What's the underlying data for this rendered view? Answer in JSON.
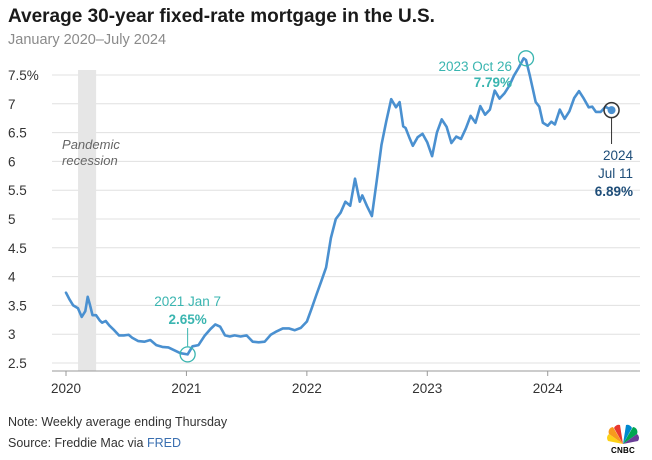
{
  "header": {
    "title": "Average 30-year fixed-rate mortgage in the U.S.",
    "subtitle": "January 2020–July 2024"
  },
  "footer": {
    "note": "Note: Weekly average ending Thursday",
    "source_prefix": "Source: Freddie Mac via ",
    "source_link": "FRED",
    "logo_text": "CNBC",
    "logo_icon": "peacock-icon"
  },
  "colors": {
    "line": "#4a90d0",
    "teal_annotation": "#3ab5b0",
    "navy_annotation": "#1f4e79",
    "recession_band": "#e6e6e6",
    "grid": "#e0e0e0"
  },
  "chart_data": {
    "type": "line",
    "title": "Average 30-year fixed-rate mortgage in the U.S.",
    "subtitle": "January 2020–July 2024",
    "xlabel": "",
    "ylabel": "",
    "xlim": [
      2020.0,
      2024.65
    ],
    "ylim": [
      2.5,
      7.5
    ],
    "x_ticks": [
      2020,
      2021,
      2022,
      2023,
      2024
    ],
    "x_tick_labels": [
      "2020",
      "2021",
      "2022",
      "2023",
      "2024"
    ],
    "y_ticks": [
      2.5,
      3,
      3.5,
      4,
      4.5,
      5,
      5.5,
      6,
      6.5,
      7,
      7.5
    ],
    "y_tick_labels": [
      "2.5",
      "3",
      "3.5",
      "4",
      "4.5",
      "5",
      "5.5",
      "6",
      "6.5",
      "7",
      "7.5%"
    ],
    "grid": "horizontal",
    "shaded_regions": [
      {
        "label_lines": [
          "Pandemic",
          "recession"
        ],
        "x_start": 2020.1,
        "x_end": 2020.25
      }
    ],
    "annotations": [
      {
        "x": 2021.01,
        "y": 2.65,
        "label": "2021 Jan 7",
        "value_label": "2.65%",
        "style": "teal"
      },
      {
        "x": 2023.82,
        "y": 7.79,
        "label": "2023 Oct 26",
        "value_label": "7.79%",
        "style": "teal"
      },
      {
        "x": 2024.53,
        "y": 6.89,
        "label_lines": [
          "2024",
          "Jul 11"
        ],
        "value_label": "6.89%",
        "style": "navy"
      }
    ],
    "series": [
      {
        "x": [
          2020.0,
          2020.03,
          2020.06,
          2020.1,
          2020.13,
          2020.16,
          2020.18,
          2020.2,
          2020.22,
          2020.25,
          2020.28,
          2020.3,
          2020.33,
          2020.36,
          2020.4,
          2020.44,
          2020.48,
          2020.52,
          2020.55,
          2020.6,
          2020.65,
          2020.7,
          2020.75,
          2020.8,
          2020.85,
          2020.9,
          2020.95,
          2021.01,
          2021.05,
          2021.1,
          2021.15,
          2021.2,
          2021.24,
          2021.28,
          2021.32,
          2021.36,
          2021.4,
          2021.45,
          2021.5,
          2021.55,
          2021.6,
          2021.65,
          2021.7,
          2021.75,
          2021.8,
          2021.85,
          2021.9,
          2021.95,
          2022.0,
          2022.04,
          2022.08,
          2022.12,
          2022.16,
          2022.2,
          2022.24,
          2022.28,
          2022.32,
          2022.36,
          2022.4,
          2022.44,
          2022.46,
          2022.5,
          2022.54,
          2022.58,
          2022.62,
          2022.66,
          2022.7,
          2022.74,
          2022.77,
          2022.8,
          2022.82,
          2022.85,
          2022.88,
          2022.92,
          2022.96,
          2023.0,
          2023.04,
          2023.08,
          2023.12,
          2023.16,
          2023.2,
          2023.24,
          2023.28,
          2023.32,
          2023.36,
          2023.4,
          2023.44,
          2023.48,
          2023.52,
          2023.56,
          2023.6,
          2023.64,
          2023.68,
          2023.72,
          2023.76,
          2023.8,
          2023.82,
          2023.85,
          2023.88,
          2023.9,
          2023.93,
          2023.96,
          2024.0,
          2024.03,
          2024.06,
          2024.1,
          2024.14,
          2024.18,
          2024.22,
          2024.26,
          2024.3,
          2024.34,
          2024.37,
          2024.4,
          2024.44,
          2024.48,
          2024.53
        ],
        "y": [
          3.72,
          3.6,
          3.5,
          3.45,
          3.3,
          3.4,
          3.65,
          3.5,
          3.33,
          3.33,
          3.24,
          3.2,
          3.23,
          3.15,
          3.07,
          2.98,
          2.98,
          2.99,
          2.94,
          2.88,
          2.87,
          2.9,
          2.81,
          2.78,
          2.77,
          2.72,
          2.67,
          2.65,
          2.79,
          2.81,
          2.97,
          3.09,
          3.17,
          3.13,
          2.98,
          2.96,
          2.98,
          2.96,
          2.98,
          2.87,
          2.86,
          2.87,
          2.99,
          3.05,
          3.1,
          3.1,
          3.07,
          3.11,
          3.22,
          3.45,
          3.69,
          3.92,
          4.16,
          4.67,
          5.0,
          5.11,
          5.3,
          5.23,
          5.7,
          5.3,
          5.41,
          5.22,
          5.05,
          5.66,
          6.29,
          6.7,
          7.08,
          6.94,
          7.03,
          6.61,
          6.58,
          6.42,
          6.27,
          6.42,
          6.48,
          6.33,
          6.09,
          6.5,
          6.73,
          6.6,
          6.32,
          6.43,
          6.39,
          6.57,
          6.79,
          6.67,
          6.96,
          6.81,
          6.9,
          7.23,
          7.09,
          7.18,
          7.31,
          7.49,
          7.63,
          7.79,
          7.76,
          7.5,
          7.22,
          7.03,
          6.95,
          6.67,
          6.62,
          6.69,
          6.64,
          6.9,
          6.74,
          6.87,
          7.1,
          7.22,
          7.09,
          6.94,
          6.95,
          6.86,
          6.86,
          6.95,
          6.89
        ]
      }
    ]
  }
}
